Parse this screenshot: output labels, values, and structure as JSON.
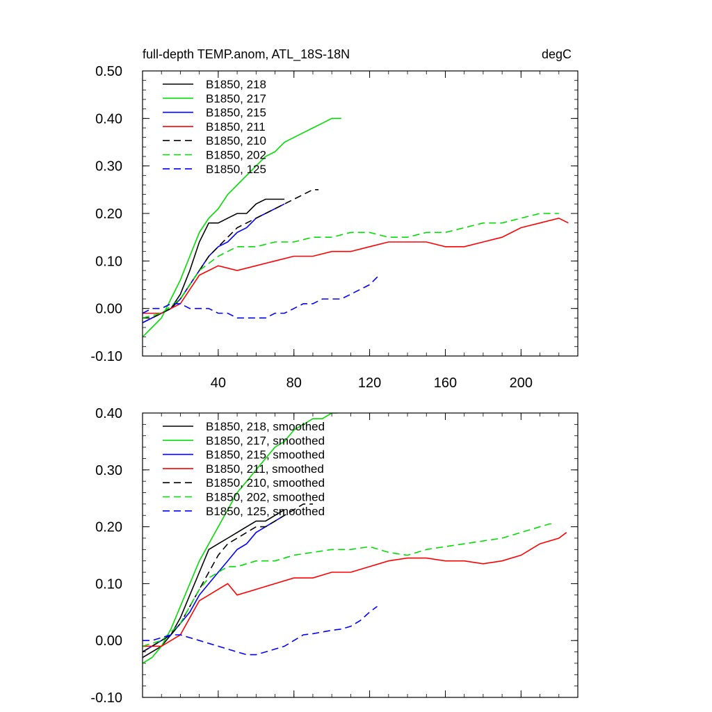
{
  "chart_data": [
    {
      "type": "line",
      "title": "full-depth TEMP.anom, ATL_18S-18N",
      "units": "degC",
      "xlabel": "",
      "ylabel": "",
      "xlim": [
        0,
        230
      ],
      "ylim": [
        -0.1,
        0.5
      ],
      "xticks": [
        40,
        80,
        120,
        160,
        200
      ],
      "yticks": [
        -0.1,
        0.0,
        0.1,
        0.2,
        0.3,
        0.4,
        0.5
      ],
      "xtick_labels": [
        "40",
        "80",
        "120",
        "160",
        "200"
      ],
      "ytick_labels": [
        "-0.10",
        "0.00",
        "0.10",
        "0.20",
        "0.30",
        "0.40",
        "0.50"
      ],
      "legend_position": "top-left",
      "series": [
        {
          "name": "B1850, 218",
          "color": "#000000",
          "dash": "solid",
          "x": [
            0,
            5,
            10,
            15,
            20,
            25,
            30,
            35,
            40,
            45,
            50,
            55,
            60,
            65,
            70,
            75
          ],
          "y": [
            -0.03,
            -0.02,
            -0.01,
            0.0,
            0.03,
            0.08,
            0.14,
            0.18,
            0.18,
            0.19,
            0.2,
            0.2,
            0.22,
            0.23,
            0.23,
            0.23
          ]
        },
        {
          "name": "B1850, 217",
          "color": "#00dd00",
          "dash": "solid",
          "x": [
            0,
            5,
            10,
            15,
            20,
            25,
            30,
            35,
            40,
            45,
            50,
            55,
            60,
            65,
            70,
            75,
            80,
            85,
            90,
            95,
            100,
            105
          ],
          "y": [
            -0.06,
            -0.04,
            -0.02,
            0.02,
            0.06,
            0.11,
            0.16,
            0.19,
            0.21,
            0.24,
            0.26,
            0.28,
            0.3,
            0.32,
            0.33,
            0.35,
            0.36,
            0.37,
            0.38,
            0.39,
            0.4,
            0.4
          ]
        },
        {
          "name": "B1850, 215",
          "color": "#0000ff",
          "dash": "solid",
          "x": [
            0,
            5,
            10,
            15,
            20,
            25,
            30,
            35,
            40,
            45,
            50,
            55,
            60,
            65,
            70,
            75
          ],
          "y": [
            -0.03,
            -0.02,
            -0.01,
            0.0,
            0.02,
            0.05,
            0.08,
            0.11,
            0.13,
            0.14,
            0.16,
            0.17,
            0.19,
            0.2,
            0.21,
            0.22
          ]
        },
        {
          "name": "B1850, 211",
          "color": "#ff0000",
          "dash": "solid",
          "x": [
            0,
            10,
            20,
            25,
            30,
            35,
            40,
            50,
            60,
            70,
            80,
            90,
            100,
            110,
            120,
            130,
            140,
            150,
            160,
            170,
            180,
            190,
            200,
            210,
            220,
            225
          ],
          "y": [
            -0.01,
            -0.01,
            0.01,
            0.04,
            0.07,
            0.08,
            0.09,
            0.08,
            0.09,
            0.1,
            0.11,
            0.11,
            0.12,
            0.12,
            0.13,
            0.14,
            0.14,
            0.14,
            0.13,
            0.13,
            0.14,
            0.15,
            0.17,
            0.18,
            0.19,
            0.18
          ]
        },
        {
          "name": "B1850, 210",
          "color": "#000000",
          "dash": "dashed",
          "x": [
            0,
            5,
            10,
            15,
            20,
            25,
            30,
            35,
            40,
            45,
            50,
            55,
            60,
            65,
            70,
            75,
            80,
            85,
            90,
            93
          ],
          "y": [
            -0.02,
            -0.02,
            -0.01,
            0.0,
            0.02,
            0.05,
            0.08,
            0.11,
            0.13,
            0.15,
            0.17,
            0.18,
            0.19,
            0.2,
            0.21,
            0.22,
            0.23,
            0.24,
            0.25,
            0.25
          ]
        },
        {
          "name": "B1850, 202",
          "color": "#00dd00",
          "dash": "dashed",
          "x": [
            0,
            10,
            20,
            30,
            40,
            50,
            60,
            70,
            80,
            90,
            100,
            110,
            120,
            130,
            140,
            150,
            160,
            170,
            180,
            190,
            200,
            210,
            220
          ],
          "y": [
            -0.02,
            -0.01,
            0.02,
            0.08,
            0.11,
            0.13,
            0.13,
            0.14,
            0.14,
            0.15,
            0.15,
            0.16,
            0.16,
            0.15,
            0.15,
            0.16,
            0.16,
            0.17,
            0.18,
            0.18,
            0.19,
            0.2,
            0.2
          ]
        },
        {
          "name": "B1850, 125",
          "color": "#0000ff",
          "dash": "dashed",
          "x": [
            0,
            5,
            10,
            15,
            20,
            25,
            30,
            35,
            40,
            45,
            50,
            55,
            60,
            65,
            70,
            75,
            80,
            85,
            90,
            95,
            100,
            105,
            110,
            115,
            120,
            125
          ],
          "y": [
            -0.01,
            0.0,
            0.0,
            0.01,
            0.01,
            0.0,
            0.0,
            0.0,
            -0.01,
            -0.01,
            -0.02,
            -0.02,
            -0.02,
            -0.02,
            -0.01,
            -0.01,
            0.0,
            0.01,
            0.01,
            0.02,
            0.02,
            0.02,
            0.03,
            0.04,
            0.05,
            0.07
          ]
        }
      ]
    },
    {
      "type": "line",
      "title": "",
      "xlabel": "",
      "ylabel": "",
      "xlim": [
        0,
        230
      ],
      "ylim": [
        -0.1,
        0.4
      ],
      "xticks": [
        40,
        80,
        120,
        160,
        200
      ],
      "yticks": [
        -0.1,
        0.0,
        0.1,
        0.2,
        0.3,
        0.4
      ],
      "ytick_labels": [
        "-0.10",
        "0.00",
        "0.10",
        "0.20",
        "0.30",
        "0.40"
      ],
      "legend_position": "top-left",
      "series": [
        {
          "name": "B1850, 218, smoothed",
          "color": "#000000",
          "dash": "solid",
          "x": [
            0,
            5,
            10,
            15,
            20,
            25,
            30,
            35,
            40,
            45,
            50,
            55,
            60,
            65,
            70,
            75
          ],
          "y": [
            -0.03,
            -0.02,
            -0.01,
            0.01,
            0.04,
            0.08,
            0.12,
            0.16,
            0.17,
            0.18,
            0.19,
            0.2,
            0.21,
            0.21,
            0.22,
            0.23
          ]
        },
        {
          "name": "B1850, 217, smoothed",
          "color": "#00dd00",
          "dash": "solid",
          "x": [
            0,
            5,
            10,
            15,
            20,
            25,
            30,
            35,
            40,
            45,
            50,
            55,
            60,
            65,
            70,
            75,
            80,
            85,
            90,
            95,
            100,
            103
          ],
          "y": [
            -0.04,
            -0.03,
            -0.01,
            0.02,
            0.06,
            0.1,
            0.14,
            0.17,
            0.2,
            0.23,
            0.26,
            0.28,
            0.3,
            0.32,
            0.34,
            0.35,
            0.37,
            0.38,
            0.39,
            0.39,
            0.4,
            0.4
          ]
        },
        {
          "name": "B1850, 215, smoothed",
          "color": "#0000ff",
          "dash": "solid",
          "x": [
            0,
            5,
            10,
            15,
            20,
            25,
            30,
            35,
            40,
            45,
            50,
            55,
            60,
            65,
            70,
            75
          ],
          "y": [
            -0.02,
            -0.01,
            0.0,
            0.01,
            0.03,
            0.05,
            0.08,
            0.1,
            0.12,
            0.14,
            0.16,
            0.17,
            0.19,
            0.2,
            0.21,
            0.22
          ]
        },
        {
          "name": "B1850, 211, smoothed",
          "color": "#ff0000",
          "dash": "solid",
          "x": [
            0,
            10,
            20,
            25,
            30,
            35,
            40,
            45,
            50,
            60,
            70,
            80,
            90,
            100,
            110,
            120,
            130,
            140,
            150,
            160,
            170,
            180,
            190,
            200,
            210,
            220,
            224
          ],
          "y": [
            -0.01,
            -0.01,
            0.01,
            0.04,
            0.07,
            0.08,
            0.09,
            0.1,
            0.08,
            0.09,
            0.1,
            0.11,
            0.11,
            0.12,
            0.12,
            0.13,
            0.14,
            0.145,
            0.145,
            0.14,
            0.14,
            0.135,
            0.14,
            0.15,
            0.17,
            0.18,
            0.19
          ]
        },
        {
          "name": "B1850, 210, smoothed",
          "color": "#000000",
          "dash": "dashed",
          "x": [
            0,
            5,
            10,
            15,
            20,
            25,
            30,
            35,
            40,
            45,
            50,
            55,
            60,
            65,
            70,
            75,
            80,
            85,
            90
          ],
          "y": [
            -0.02,
            -0.01,
            0.0,
            0.01,
            0.03,
            0.06,
            0.09,
            0.12,
            0.15,
            0.17,
            0.18,
            0.19,
            0.2,
            0.2,
            0.21,
            0.22,
            0.23,
            0.24,
            0.24
          ]
        },
        {
          "name": "B1850, 202, smoothed",
          "color": "#00dd00",
          "dash": "dashed",
          "x": [
            0,
            10,
            20,
            25,
            30,
            35,
            40,
            45,
            50,
            60,
            70,
            80,
            90,
            100,
            110,
            120,
            130,
            140,
            150,
            160,
            170,
            180,
            190,
            200,
            210,
            215,
            218
          ],
          "y": [
            -0.01,
            0.0,
            0.03,
            0.06,
            0.09,
            0.11,
            0.12,
            0.13,
            0.13,
            0.14,
            0.14,
            0.15,
            0.155,
            0.16,
            0.16,
            0.165,
            0.155,
            0.15,
            0.16,
            0.165,
            0.17,
            0.175,
            0.18,
            0.19,
            0.2,
            0.205,
            0.205
          ]
        },
        {
          "name": "B1850, 125, smoothed",
          "color": "#0000ff",
          "dash": "dashed",
          "x": [
            0,
            5,
            10,
            15,
            20,
            25,
            30,
            35,
            40,
            45,
            50,
            55,
            60,
            65,
            70,
            75,
            80,
            85,
            90,
            95,
            100,
            105,
            110,
            115,
            120,
            124
          ],
          "y": [
            0.0,
            0.0,
            0.005,
            0.01,
            0.01,
            0.005,
            0.0,
            -0.005,
            -0.01,
            -0.015,
            -0.02,
            -0.025,
            -0.025,
            -0.02,
            -0.015,
            -0.01,
            0.0,
            0.01,
            0.012,
            0.015,
            0.018,
            0.02,
            0.025,
            0.035,
            0.05,
            0.06
          ]
        }
      ]
    }
  ]
}
